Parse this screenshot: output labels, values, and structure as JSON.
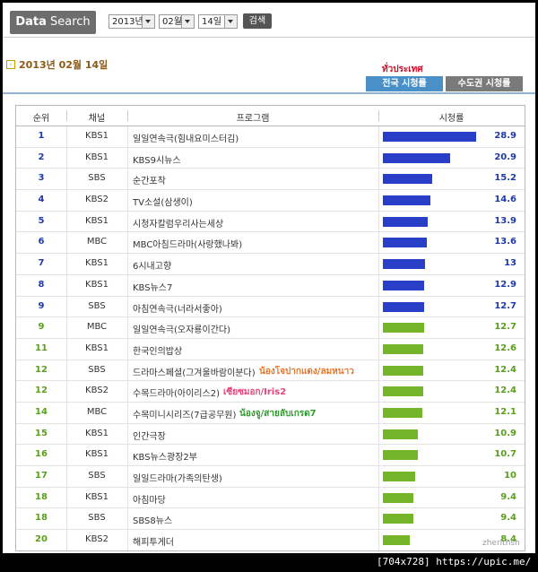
{
  "search": {
    "label_bold": "Data",
    "label_rest": " Search",
    "year": "2013년",
    "month": "02월",
    "day": "14일",
    "button": "검색"
  },
  "date_heading": "2013년 02월 14일",
  "region_note": "ทั่วประเทศ",
  "tabs": {
    "national": "전국 시청률",
    "metro": "수도권 시청률"
  },
  "table": {
    "headers": {
      "rank": "순위",
      "channel": "채널",
      "program": "프로그램",
      "rating": "시청률"
    },
    "rows": [
      {
        "rank": "1",
        "channel": "KBS1",
        "program": "일일연속극(힘내요미스터김)",
        "note": "",
        "value": "28.9",
        "rating": 28.9
      },
      {
        "rank": "2",
        "channel": "KBS1",
        "program": "KBS9시뉴스",
        "note": "",
        "value": "20.9",
        "rating": 20.9
      },
      {
        "rank": "3",
        "channel": "SBS",
        "program": "순간포착",
        "note": "",
        "value": "15.2",
        "rating": 15.2
      },
      {
        "rank": "4",
        "channel": "KBS2",
        "program": "TV소설(삼생이)",
        "note": "",
        "value": "14.6",
        "rating": 14.6
      },
      {
        "rank": "5",
        "channel": "KBS1",
        "program": "시청자칼럼우리사는세상",
        "note": "",
        "value": "13.9",
        "rating": 13.9
      },
      {
        "rank": "6",
        "channel": "MBC",
        "program": "MBC아침드라마(사랑했나봐)",
        "note": "",
        "value": "13.6",
        "rating": 13.6
      },
      {
        "rank": "7",
        "channel": "KBS1",
        "program": "6시내고향",
        "note": "",
        "value": "13",
        "rating": 13
      },
      {
        "rank": "8",
        "channel": "KBS1",
        "program": "KBS뉴스7",
        "note": "",
        "value": "12.9",
        "rating": 12.9
      },
      {
        "rank": "9",
        "channel": "SBS",
        "program": "아침연속극(너라서좋아)",
        "note": "",
        "value": "12.7",
        "rating": 12.7
      },
      {
        "rank": "9",
        "channel": "MBC",
        "program": "일일연속극(오자룡이간다)",
        "note": "",
        "value": "12.7",
        "rating": 12.7
      },
      {
        "rank": "11",
        "channel": "KBS1",
        "program": "한국인의밥상",
        "note": "",
        "value": "12.6",
        "rating": 12.6
      },
      {
        "rank": "12",
        "channel": "SBS",
        "program": "드라마스페셜(그겨울바람이분다)",
        "note": "น้องโจปากแดง/ลมหนาว",
        "value": "12.4",
        "rating": 12.4
      },
      {
        "rank": "12",
        "channel": "KBS2",
        "program": "수목드라마(아이리스2)",
        "note": "เซียซมอก/Iris2",
        "value": "12.4",
        "rating": 12.4
      },
      {
        "rank": "14",
        "channel": "MBC",
        "program": "수목미니시리즈(7급공무원)",
        "note": "น้องจู/สายลับเกรด7",
        "value": "12.1",
        "rating": 12.1
      },
      {
        "rank": "15",
        "channel": "KBS1",
        "program": "인간극장",
        "note": "",
        "value": "10.9",
        "rating": 10.9
      },
      {
        "rank": "16",
        "channel": "KBS1",
        "program": "KBS뉴스광장2부",
        "note": "",
        "value": "10.7",
        "rating": 10.7
      },
      {
        "rank": "17",
        "channel": "SBS",
        "program": "일일드라마(가족의탄생)",
        "note": "",
        "value": "10",
        "rating": 10
      },
      {
        "rank": "18",
        "channel": "KBS1",
        "program": "아침마당",
        "note": "",
        "value": "9.4",
        "rating": 9.4
      },
      {
        "rank": "18",
        "channel": "SBS",
        "program": "SBS8뉴스",
        "note": "",
        "value": "9.4",
        "rating": 9.4
      },
      {
        "rank": "20",
        "channel": "KBS2",
        "program": "해피투게더",
        "note": "",
        "value": "8.4",
        "rating": 8.4
      }
    ]
  },
  "colors": {
    "blue_bar": "#2a3fc8",
    "green_bar": "#74b52a",
    "blue_text": "#1f3aa8",
    "green_text": "#5aa01a",
    "note_orange": "#e8742a",
    "note_pink": "#e8407a",
    "note_green": "#2f9a2f"
  },
  "watermark": "zherlthsh",
  "footer": "[704x728] https://upic.me/"
}
